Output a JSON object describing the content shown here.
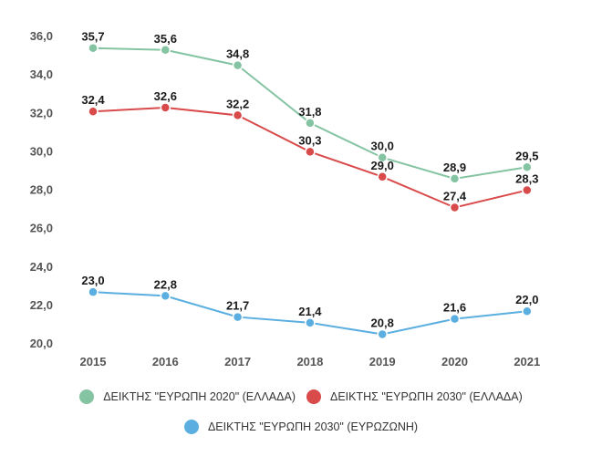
{
  "chart_data": {
    "type": "line",
    "title": "",
    "xlabel": "",
    "ylabel": "",
    "ylim": [
      20,
      36
    ],
    "grid": false,
    "legend_position": "bottom",
    "x": [
      "2015",
      "2016",
      "2017",
      "2018",
      "2019",
      "2020",
      "2021"
    ],
    "yticks": [
      "20,0",
      "22,0",
      "24,0",
      "26,0",
      "28,0",
      "30,0",
      "32,0",
      "34,0",
      "36,0"
    ],
    "series": [
      {
        "name": "ΔΕΙΚΤΗΣ \"ΕΥΡΩΠΗ 2020\" (ΕΛΛΑΔΑ)",
        "color": "#84c4a2",
        "values": [
          35.7,
          35.6,
          34.8,
          31.8,
          30.0,
          28.9,
          29.5
        ],
        "labels": [
          "35,7",
          "35,6",
          "34,8",
          "31,8",
          "30,0",
          "28,9",
          "29,5"
        ]
      },
      {
        "name": "ΔΕΙΚΤΗΣ \"ΕΥΡΩΠΗ 2030\" (ΕΛΛΑΔΑ)",
        "color": "#d94a4a",
        "values": [
          32.4,
          32.6,
          32.2,
          30.3,
          29.0,
          27.4,
          28.3
        ],
        "labels": [
          "32,4",
          "32,6",
          "32,2",
          "30,3",
          "29,0",
          "27,4",
          "28,3"
        ]
      },
      {
        "name": "ΔΕΙΚΤΗΣ \"ΕΥΡΩΠΗ 2030\" (ΕΥΡΩΖΩΝΗ)",
        "color": "#5aaee0",
        "values": [
          23.0,
          22.8,
          21.7,
          21.4,
          20.8,
          21.6,
          22.0
        ],
        "labels": [
          "23,0",
          "22,8",
          "21,7",
          "21,4",
          "20,8",
          "21,6",
          "22,0"
        ]
      }
    ]
  }
}
